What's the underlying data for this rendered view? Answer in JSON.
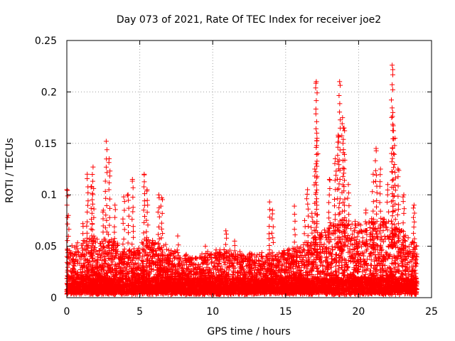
{
  "chart_data": {
    "type": "scatter",
    "title": "Day 073 of 2021, Rate Of TEC Index for receiver joe2",
    "xlabel": "GPS time / hours",
    "ylabel": "ROTI / TECUs",
    "xlim": [
      0,
      25
    ],
    "ylim": [
      0,
      0.25
    ],
    "x_ticks": [
      0,
      5,
      10,
      15,
      20,
      25
    ],
    "x_tick_labels": [
      "0",
      "5",
      "10",
      "15",
      "20",
      "25"
    ],
    "y_ticks": [
      0,
      0.05,
      0.1,
      0.15,
      0.2,
      0.25
    ],
    "y_tick_labels": [
      "0",
      "0.05",
      "0.1",
      "0.15",
      "0.2",
      "0.25"
    ],
    "grid": true,
    "marker": "+",
    "series": [
      {
        "name": "ROTI",
        "color": "#ff0000",
        "dense_band": {
          "x_range": [
            0,
            24
          ],
          "y_base": [
            [
              0,
              0.02
            ],
            [
              1,
              0.022
            ],
            [
              2,
              0.024
            ],
            [
              3,
              0.022
            ],
            [
              4,
              0.018
            ],
            [
              5,
              0.02
            ],
            [
              6,
              0.022
            ],
            [
              7,
              0.02
            ],
            [
              8,
              0.017
            ],
            [
              9,
              0.016
            ],
            [
              10,
              0.018
            ],
            [
              11,
              0.019
            ],
            [
              12,
              0.018
            ],
            [
              13,
              0.017
            ],
            [
              14,
              0.018
            ],
            [
              15,
              0.019
            ],
            [
              16,
              0.02
            ],
            [
              17,
              0.024
            ],
            [
              18,
              0.028
            ],
            [
              19,
              0.03
            ],
            [
              20,
              0.03
            ],
            [
              21,
              0.032
            ],
            [
              22,
              0.03
            ],
            [
              23,
              0.028
            ],
            [
              24,
              0.022
            ]
          ],
          "y_spread": [
            [
              0,
              0.035
            ],
            [
              1,
              0.045
            ],
            [
              2,
              0.05
            ],
            [
              3,
              0.045
            ],
            [
              4,
              0.035
            ],
            [
              5,
              0.045
            ],
            [
              6,
              0.045
            ],
            [
              7,
              0.038
            ],
            [
              8,
              0.03
            ],
            [
              9,
              0.03
            ],
            [
              10,
              0.035
            ],
            [
              11,
              0.035
            ],
            [
              12,
              0.032
            ],
            [
              13,
              0.03
            ],
            [
              14,
              0.032
            ],
            [
              15,
              0.035
            ],
            [
              16,
              0.038
            ],
            [
              17,
              0.05
            ],
            [
              18,
              0.06
            ],
            [
              19,
              0.065
            ],
            [
              20,
              0.06
            ],
            [
              21,
              0.065
            ],
            [
              22,
              0.065
            ],
            [
              23,
              0.055
            ],
            [
              24,
              0.04
            ]
          ]
        },
        "spikes": [
          {
            "x": 0.0,
            "peak": 0.105
          },
          {
            "x": 0.1,
            "peak": 0.08
          },
          {
            "x": 1.1,
            "peak": 0.072
          },
          {
            "x": 1.4,
            "peak": 0.12
          },
          {
            "x": 1.7,
            "peak": 0.108
          },
          {
            "x": 1.8,
            "peak": 0.127
          },
          {
            "x": 2.5,
            "peak": 0.085
          },
          {
            "x": 2.7,
            "peak": 0.152
          },
          {
            "x": 2.9,
            "peak": 0.135
          },
          {
            "x": 3.3,
            "peak": 0.09
          },
          {
            "x": 3.9,
            "peak": 0.098
          },
          {
            "x": 4.2,
            "peak": 0.1
          },
          {
            "x": 4.5,
            "peak": 0.115
          },
          {
            "x": 5.3,
            "peak": 0.12
          },
          {
            "x": 5.5,
            "peak": 0.105
          },
          {
            "x": 6.3,
            "peak": 0.1
          },
          {
            "x": 6.5,
            "peak": 0.097
          },
          {
            "x": 7.6,
            "peak": 0.06
          },
          {
            "x": 9.5,
            "peak": 0.05
          },
          {
            "x": 10.9,
            "peak": 0.065
          },
          {
            "x": 11.5,
            "peak": 0.055
          },
          {
            "x": 13.9,
            "peak": 0.093
          },
          {
            "x": 14.1,
            "peak": 0.085
          },
          {
            "x": 15.6,
            "peak": 0.089
          },
          {
            "x": 16.3,
            "peak": 0.075
          },
          {
            "x": 16.5,
            "peak": 0.105
          },
          {
            "x": 16.8,
            "peak": 0.082
          },
          {
            "x": 17.0,
            "peak": 0.125
          },
          {
            "x": 17.1,
            "peak": 0.21
          },
          {
            "x": 17.15,
            "peak": 0.155
          },
          {
            "x": 18.0,
            "peak": 0.115
          },
          {
            "x": 18.4,
            "peak": 0.135
          },
          {
            "x": 18.6,
            "peak": 0.158
          },
          {
            "x": 18.7,
            "peak": 0.21
          },
          {
            "x": 18.9,
            "peak": 0.175
          },
          {
            "x": 19.0,
            "peak": 0.165
          },
          {
            "x": 19.3,
            "peak": 0.11
          },
          {
            "x": 20.5,
            "peak": 0.085
          },
          {
            "x": 21.0,
            "peak": 0.12
          },
          {
            "x": 21.2,
            "peak": 0.145
          },
          {
            "x": 21.5,
            "peak": 0.125
          },
          {
            "x": 22.0,
            "peak": 0.11
          },
          {
            "x": 22.3,
            "peak": 0.226
          },
          {
            "x": 22.35,
            "peak": 0.18
          },
          {
            "x": 22.5,
            "peak": 0.155
          },
          {
            "x": 22.7,
            "peak": 0.125
          },
          {
            "x": 23.1,
            "peak": 0.1
          },
          {
            "x": 23.8,
            "peak": 0.09
          }
        ]
      }
    ]
  }
}
